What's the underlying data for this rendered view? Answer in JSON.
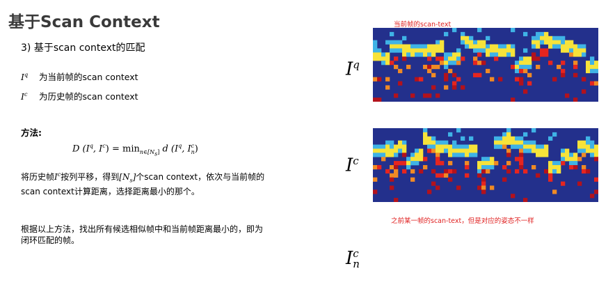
{
  "slide": {
    "title": "基于Scan Context",
    "subtitle": "3) 基于scan context的匹配",
    "defs": [
      {
        "base": "I",
        "sup": "q",
        "text": "为当前帧的scan context"
      },
      {
        "base": "I",
        "sup": "c",
        "text": "为历史帧的scan context"
      }
    ],
    "method_label": "方法:",
    "formula": {
      "lhs": "D (I",
      "lhs_sup1": "q",
      "lhs_mid": ", I",
      "lhs_sup2": "c",
      "lhs_end": ") = min",
      "sub": "n∈[N",
      "sub_s": "s",
      "sub_end": "]",
      "rhs": " d (I",
      "rhs_sup1": "q",
      "rhs_mid": ", I",
      "rhs_sup2": "c",
      "rhs_sub": "n",
      "rhs_end": ")"
    },
    "para1": {
      "part1": "将历史帧",
      "math1": "I",
      "math1_sup": "c",
      "part2": "按列平移，得到",
      "math2": "[N",
      "math2_sub": "s",
      "math2_end": "]",
      "part3": "个scan context，依次与当前帧的",
      "line2": "scan context计算距离，选择距离最小的那个。"
    },
    "para2": {
      "line1": "根据以上方法，找出所有候选相似帧中和当前帧距离最小的，即为",
      "line2": "闭环匹配的帧。"
    },
    "figure": {
      "label_q": {
        "base": "I",
        "sup": "q"
      },
      "label_c": {
        "base": "I",
        "sup": "c"
      },
      "label_cn": {
        "base": "I",
        "sup": "c",
        "sub": "n"
      },
      "annot_top": "当前帧的scan-text",
      "annot_mid": "之前某一帧的scan-text，但是对应的姿态不一样"
    },
    "colors": {
      "background": "#23308c",
      "annot": "#e02020"
    }
  }
}
